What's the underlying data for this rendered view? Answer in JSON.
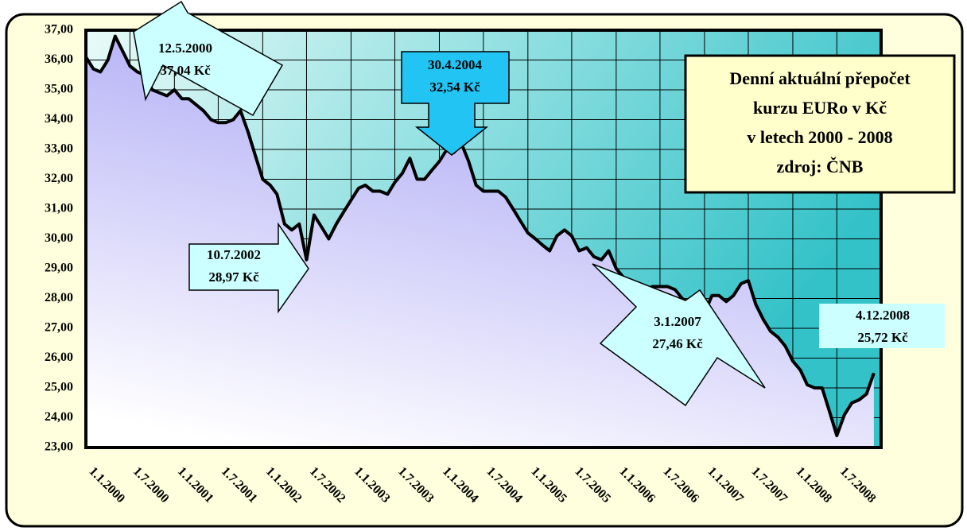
{
  "chart_data": {
    "type": "line",
    "title": [
      "Denní aktuální přepočet",
      "kurzu EURo v Kč",
      "v letech 2000 - 2008",
      "zdroj: ČNB"
    ],
    "x": [
      "1.1.2000",
      "1.2.2000",
      "1.3.2000",
      "1.4.2000",
      "1.5.2000",
      "1.6.2000",
      "1.7.2000",
      "1.8.2000",
      "1.9.2000",
      "1.10.2000",
      "1.11.2000",
      "1.12.2000",
      "1.1.2001",
      "1.2.2001",
      "1.3.2001",
      "1.4.2001",
      "1.5.2001",
      "1.6.2001",
      "1.7.2001",
      "1.8.2001",
      "1.9.2001",
      "1.10.2001",
      "1.11.2001",
      "1.12.2001",
      "1.1.2002",
      "1.2.2002",
      "1.3.2002",
      "1.4.2002",
      "1.5.2002",
      "1.6.2002",
      "1.7.2002",
      "1.8.2002",
      "1.9.2002",
      "1.10.2002",
      "1.11.2002",
      "1.12.2002",
      "1.1.2003",
      "1.2.2003",
      "1.3.2003",
      "1.4.2003",
      "1.5.2003",
      "1.6.2003",
      "1.7.2003",
      "1.8.2003",
      "1.9.2003",
      "1.10.2003",
      "1.11.2003",
      "1.12.2003",
      "1.1.2004",
      "1.2.2004",
      "1.3.2004",
      "1.4.2004",
      "1.5.2004",
      "1.6.2004",
      "1.7.2004",
      "1.8.2004",
      "1.9.2004",
      "1.10.2004",
      "1.11.2004",
      "1.12.2004",
      "1.1.2005",
      "1.2.2005",
      "1.3.2005",
      "1.4.2005",
      "1.5.2005",
      "1.6.2005",
      "1.7.2005",
      "1.8.2005",
      "1.9.2005",
      "1.10.2005",
      "1.11.2005",
      "1.12.2005",
      "1.1.2006",
      "1.2.2006",
      "1.3.2006",
      "1.4.2006",
      "1.5.2006",
      "1.6.2006",
      "1.7.2006",
      "1.8.2006",
      "1.9.2006",
      "1.10.2006",
      "1.11.2006",
      "1.12.2006",
      "1.1.2007",
      "1.2.2007",
      "1.3.2007",
      "1.4.2007",
      "1.5.2007",
      "1.6.2007",
      "1.7.2007",
      "1.8.2007",
      "1.9.2007",
      "1.10.2007",
      "1.11.2007",
      "1.12.2007",
      "1.1.2008",
      "1.2.2008",
      "1.3.2008",
      "1.4.2008",
      "1.5.2008",
      "1.6.2008",
      "1.7.2008",
      "1.8.2008",
      "1.9.2008",
      "1.10.2008",
      "1.11.2008",
      "1.12.2008"
    ],
    "values": [
      36.1,
      35.7,
      35.6,
      36.0,
      36.8,
      36.3,
      35.8,
      35.6,
      35.5,
      35.0,
      34.9,
      34.8,
      35.0,
      34.7,
      34.7,
      34.5,
      34.3,
      34.0,
      33.9,
      33.9,
      34.0,
      34.3,
      33.6,
      32.8,
      32.0,
      31.8,
      31.5,
      30.5,
      30.3,
      30.5,
      29.3,
      30.8,
      30.4,
      30.0,
      30.5,
      30.9,
      31.3,
      31.7,
      31.8,
      31.6,
      31.6,
      31.5,
      31.9,
      32.2,
      32.7,
      32.0,
      32.0,
      32.3,
      32.6,
      33.0,
      32.9,
      33.2,
      32.6,
      31.8,
      31.6,
      31.6,
      31.6,
      31.4,
      31.0,
      30.6,
      30.2,
      30.0,
      29.8,
      29.6,
      30.1,
      30.3,
      30.1,
      29.6,
      29.7,
      29.4,
      29.3,
      29.6,
      29.0,
      28.7,
      28.6,
      28.5,
      28.3,
      28.4,
      28.4,
      28.4,
      28.3,
      28.0,
      27.8,
      27.6,
      27.5,
      28.1,
      28.1,
      27.9,
      28.1,
      28.5,
      28.6,
      27.8,
      27.3,
      26.9,
      26.7,
      26.4,
      25.9,
      25.6,
      25.1,
      25.0,
      25.0,
      24.2,
      23.4,
      24.1,
      24.5,
      24.6,
      24.8,
      25.5
    ],
    "color": "#000000",
    "xlim": [
      "1.1.2000",
      "31.12.2008"
    ],
    "xticks": [
      "1.1.2000",
      "1.7.2000",
      "1.1.2001",
      "1.7.2001",
      "1.1.2002",
      "1.7.2002",
      "1.1.2003",
      "1.7.2003",
      "1.1.2004",
      "1.7.2004",
      "1.1.2005",
      "1.7.2005",
      "1.1.2006",
      "1.7.2006",
      "1.1.2007",
      "1.7.2007",
      "1.1.2008",
      "1.7.2008"
    ],
    "ylim": [
      23,
      37
    ],
    "yticks": [
      {
        "value": 23,
        "label": "23,00"
      },
      {
        "value": 24,
        "label": "24,00"
      },
      {
        "value": 25,
        "label": "25,00"
      },
      {
        "value": 26,
        "label": "26,00"
      },
      {
        "value": 27,
        "label": "27,00"
      },
      {
        "value": 28,
        "label": "28,00"
      },
      {
        "value": 29,
        "label": "29,00"
      },
      {
        "value": 30,
        "label": "30,00"
      },
      {
        "value": 31,
        "label": "31,00"
      },
      {
        "value": 32,
        "label": "32,00"
      },
      {
        "value": 33,
        "label": "33,00"
      },
      {
        "value": 34,
        "label": "34,00"
      },
      {
        "value": 35,
        "label": "35,00"
      },
      {
        "value": 36,
        "label": "36,00"
      },
      {
        "value": 37,
        "label": "37,00"
      }
    ],
    "grid": true,
    "annotations": [
      {
        "lines": [
          "12.5.2000",
          "37,04 Kč"
        ]
      },
      {
        "lines": [
          "30.4.2004",
          "32,54 Kč"
        ]
      },
      {
        "lines": [
          "10.7.2002",
          "28,97 Kč"
        ]
      },
      {
        "lines": [
          "3.1.2007",
          "27,46 Kč"
        ]
      },
      {
        "lines": [
          "4.12.2008",
          "25,72 Kč"
        ]
      }
    ]
  }
}
